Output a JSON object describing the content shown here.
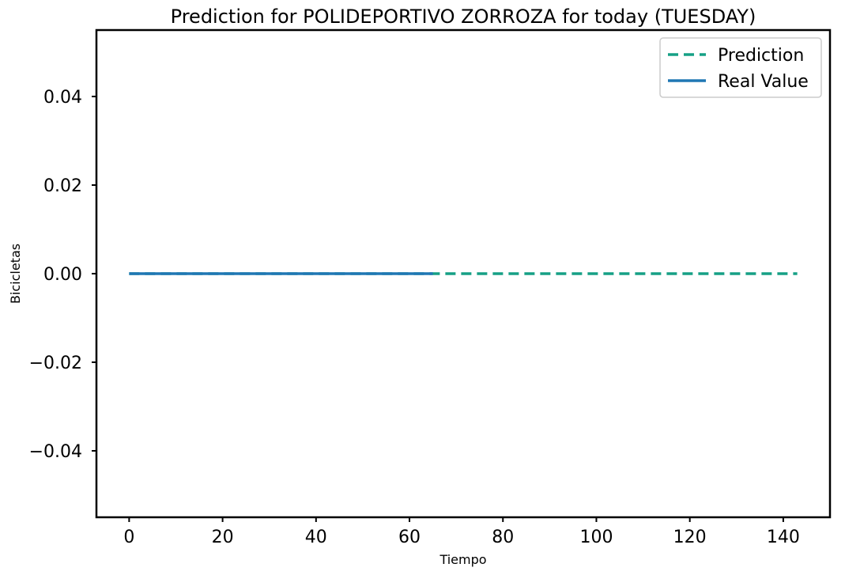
{
  "chart_data": {
    "type": "line",
    "title": "Prediction for POLIDEPORTIVO ZORROZA for today (TUESDAY)",
    "xlabel": "Tiempo",
    "ylabel": "Bicicletas",
    "xlim": [
      -7,
      150
    ],
    "ylim": [
      -0.055,
      0.055
    ],
    "x_ticks": [
      0,
      20,
      40,
      60,
      80,
      100,
      120,
      140
    ],
    "y_ticks": [
      0.04,
      0.02,
      0.0,
      -0.02,
      -0.04
    ],
    "x_tick_labels": [
      "0",
      "20",
      "40",
      "60",
      "80",
      "100",
      "120",
      "140"
    ],
    "y_tick_labels": [
      "0.04",
      "0.02",
      "0.00",
      "−0.02",
      "−0.04"
    ],
    "grid": false,
    "legend_position": "top-right",
    "series": [
      {
        "name": "Prediction",
        "style": "dashed",
        "color": "#16a085",
        "x": [
          0,
          143
        ],
        "y": [
          0,
          0
        ]
      },
      {
        "name": "Real Value",
        "style": "solid",
        "color": "#1f77b4",
        "x": [
          0,
          65
        ],
        "y": [
          0,
          0
        ]
      }
    ]
  }
}
